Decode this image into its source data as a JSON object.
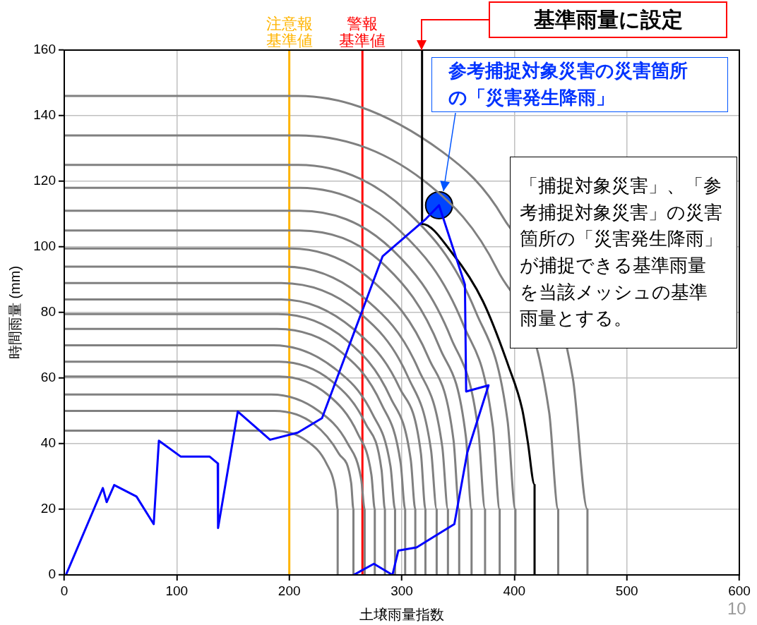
{
  "chart_data": {
    "type": "line",
    "xlabel": "土壌雨量指数",
    "ylabel": "時間雨量 (mm)",
    "xlim": [
      0,
      600
    ],
    "xticks": [
      0,
      100,
      200,
      300,
      400,
      500,
      600
    ],
    "ylim": [
      0,
      160
    ],
    "yticks": [
      0,
      20,
      40,
      60,
      80,
      100,
      120,
      140,
      160
    ],
    "grid": true,
    "legend": false,
    "marker": "none",
    "line_style": "solid",
    "series": [
      {
        "color": "#808080",
        "x": [
          0,
          186,
          215,
          233,
          241,
          243,
          243
        ],
        "values": [
          44,
          44,
          41,
          34,
          26,
          20,
          0
        ]
      },
      {
        "color": "#808080",
        "x": [
          0,
          187,
          222,
          244,
          255,
          257,
          257
        ],
        "values": [
          50,
          50,
          46,
          37,
          28,
          20,
          0
        ]
      },
      {
        "color": "#808080",
        "x": [
          0,
          184,
          226,
          252,
          264,
          267,
          267
        ],
        "values": [
          55,
          55,
          50,
          40,
          29,
          20,
          0
        ]
      },
      {
        "color": "#808080",
        "x": [
          0,
          191,
          234,
          261,
          273,
          276,
          276
        ],
        "values": [
          60.5,
          60.5,
          55,
          43,
          30.5,
          20,
          0
        ]
      },
      {
        "color": "#808080",
        "x": [
          0,
          191,
          238,
          268,
          282,
          285,
          285
        ],
        "values": [
          65,
          65,
          59,
          46,
          32,
          20,
          0
        ]
      },
      {
        "color": "#808080",
        "x": [
          0,
          186,
          240,
          274,
          290,
          294,
          294
        ],
        "values": [
          70,
          70,
          63,
          49,
          33,
          20,
          0
        ]
      },
      {
        "color": "#808080",
        "x": [
          0,
          189,
          246,
          282,
          299,
          303,
          303
        ],
        "values": [
          75,
          75,
          68,
          52,
          34,
          20,
          0
        ]
      },
      {
        "color": "#808080",
        "x": [
          0,
          190,
          251,
          290,
          308,
          312,
          312
        ],
        "values": [
          79.5,
          79.5,
          71.5,
          54,
          35,
          20,
          0
        ]
      },
      {
        "color": "#808080",
        "x": [
          0,
          193,
          257,
          298,
          317,
          321,
          321
        ],
        "values": [
          84,
          84,
          75,
          57,
          37,
          20,
          0
        ]
      },
      {
        "color": "#808080",
        "x": [
          0,
          193,
          262,
          306,
          326,
          331,
          331
        ],
        "values": [
          89,
          89,
          80,
          60,
          38,
          20,
          0
        ]
      },
      {
        "color": "#808080",
        "x": [
          0,
          196,
          268,
          315,
          336,
          341,
          341
        ],
        "values": [
          94,
          94,
          84,
          62.5,
          39,
          20,
          0
        ]
      },
      {
        "color": "#808080",
        "x": [
          0,
          201,
          276,
          324,
          346,
          351,
          351
        ],
        "values": [
          99.5,
          99.5,
          89,
          66,
          41,
          20,
          0
        ]
      },
      {
        "color": "#808080",
        "x": [
          0,
          209,
          286,
          334,
          357,
          362,
          362
        ],
        "values": [
          105,
          105,
          94,
          69,
          42,
          20,
          0
        ]
      },
      {
        "color": "#808080",
        "x": [
          0,
          209,
          292,
          344,
          368,
          374,
          374
        ],
        "values": [
          111,
          111,
          99,
          72,
          44,
          20,
          0
        ]
      },
      {
        "color": "#808080",
        "x": [
          0,
          209,
          298,
          355,
          381,
          387,
          387
        ],
        "values": [
          118,
          118,
          105,
          76,
          45,
          20,
          0
        ]
      },
      {
        "color": "#808080",
        "x": [
          0,
          208,
          304,
          366,
          394,
          401,
          401
        ],
        "values": [
          125,
          125,
          111,
          80,
          47,
          20,
          0
        ]
      },
      {
        "color": "#808080",
        "x": [
          0,
          208,
          324,
          385,
          431,
          439,
          439
        ],
        "values": [
          134,
          134,
          119,
          93,
          49.5,
          20,
          0
        ]
      },
      {
        "color": "#808080",
        "x": [
          0,
          208,
          336,
          390,
          452,
          465,
          465
        ],
        "values": [
          146,
          146,
          129,
          109,
          60,
          20,
          0
        ]
      },
      {
        "color": "#000000",
        "x": [
          318,
          318,
          345,
          372,
          395,
          407,
          412,
          418,
          418
        ],
        "values": [
          160,
          107,
          98,
          83.5,
          63.5,
          50.5,
          40.5,
          27.5,
          0
        ]
      },
      {
        "color": "#0000ff",
        "x": [
          1.5,
          34.3,
          37.7,
          44.4,
          64.2,
          79.5,
          84.1,
          103.4,
          129.1,
          136.4,
          136.7,
          154.2,
          182.9,
          207.6,
          229.1,
          282.9,
          321.6,
          333.1,
          356.1,
          357.2,
          377.1,
          358.2,
          346.7,
          313.2,
          296.9,
          291.7,
          275.2,
          257.2
        ],
        "values": [
          0,
          26.5,
          22.2,
          27.4,
          23.9,
          15.5,
          40.9,
          36.1,
          36.1,
          34,
          14.3,
          49.8,
          41.2,
          43.4,
          47.8,
          97.1,
          108.6,
          112.7,
          88.5,
          55.9,
          57.8,
          37.3,
          15.5,
          8.4,
          7.4,
          0,
          3.4,
          0
        ]
      },
      {
        "type": "scatter",
        "marker": "circle",
        "color": "#0044ff",
        "x": [
          333.1
        ],
        "values": [
          112.7
        ]
      }
    ],
    "ref_lines": [
      {
        "axis": "x",
        "value": 200,
        "label": "注意報基準値",
        "color": "#ffb400"
      },
      {
        "axis": "x",
        "value": 265,
        "label": "警報基準値",
        "color": "#ff0000"
      }
    ],
    "annotations": [
      "基準雨量に設定",
      {
        "text": "参考捕捉対象災害の災害箇所の「災害発生降雨」",
        "x": 337,
        "y": 117
      },
      "「捕捉対象災害」、「参考捕捉対象災害」の災害箇所の「災害発生降雨」が捕捉できる基準雨量を当該メッシュの基準雨量とする。",
      "10"
    ]
  }
}
